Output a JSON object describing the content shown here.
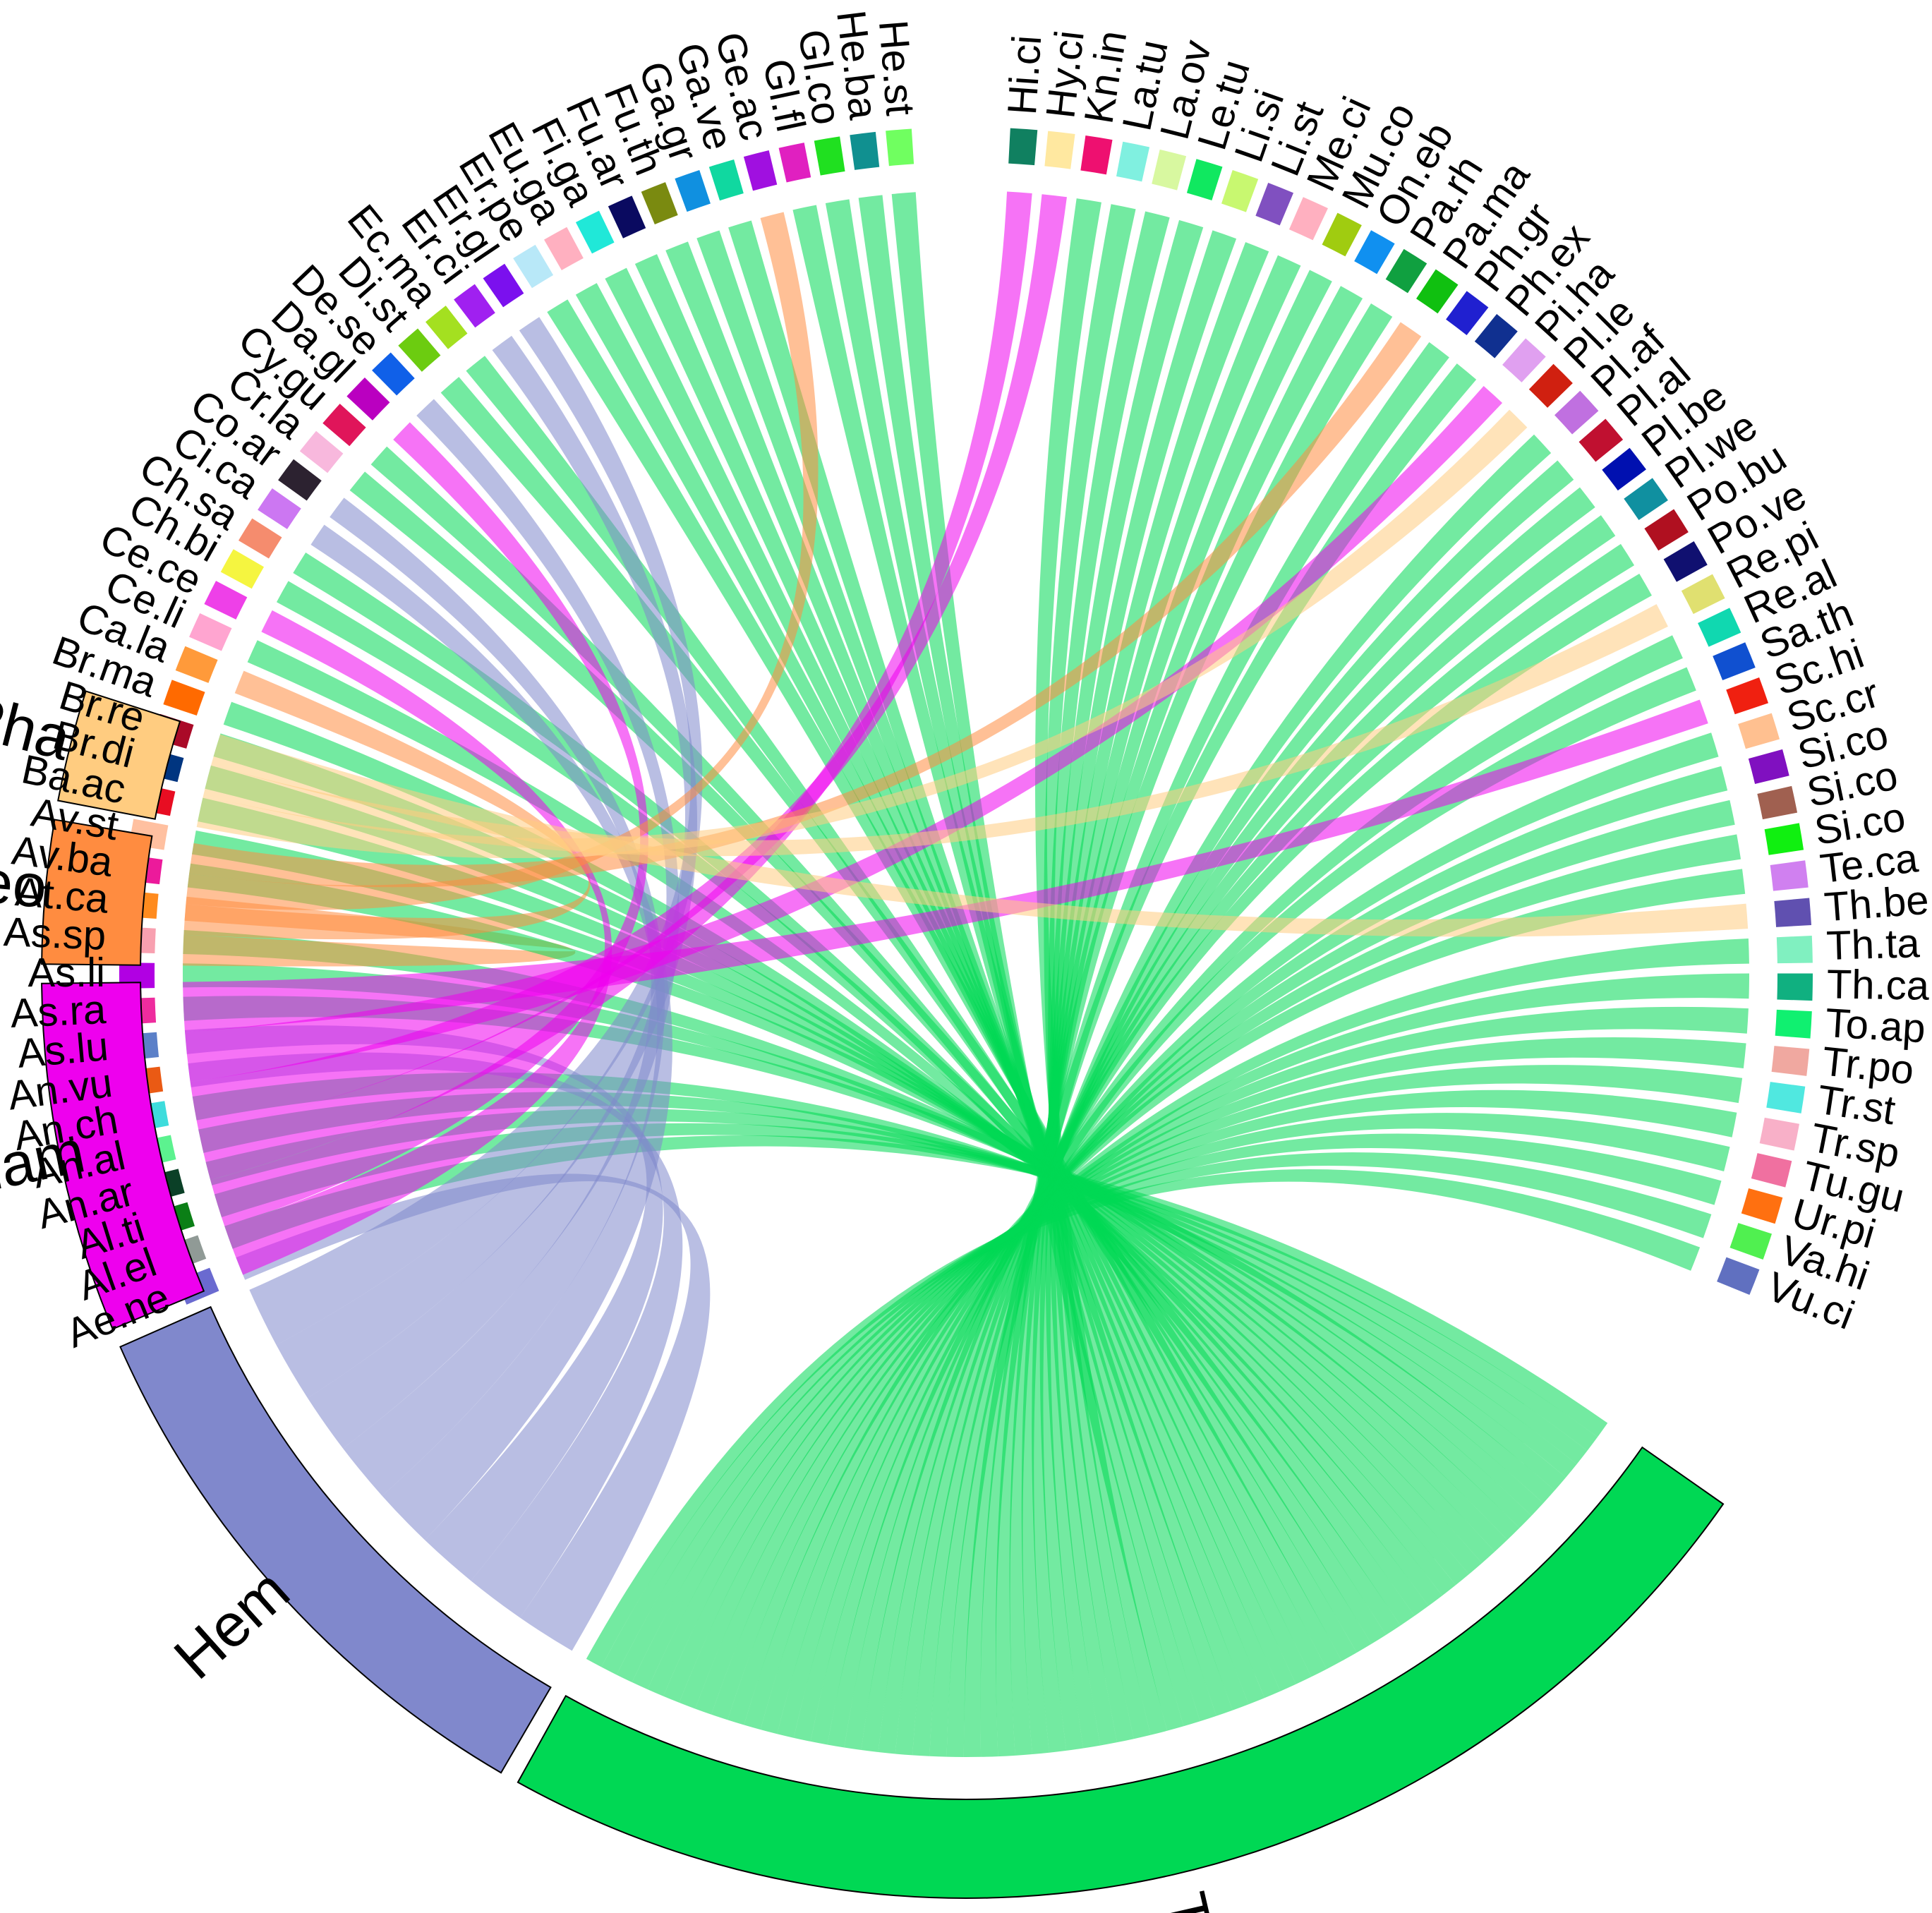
{
  "chart_data": {
    "type": "chord",
    "groups": [
      {
        "name": "Th",
        "color": "#00D854"
      },
      {
        "name": "Hem",
        "color": "#8088CC"
      },
      {
        "name": "Cham",
        "color": "#EE00EE"
      },
      {
        "name": "Geo",
        "color": "#FF8C40"
      },
      {
        "name": "Pha",
        "color": "#FFCC80"
      }
    ],
    "species": [
      {
        "name": "Ae.ne",
        "color": "#6A6AD0",
        "group": "Hem"
      },
      {
        "name": "Al.el",
        "color": "#909A96",
        "group": "Th"
      },
      {
        "name": "Al.ti",
        "color": "#0B7F16",
        "group": "Th"
      },
      {
        "name": "An.ar",
        "color": "#0B4027",
        "group": "Th"
      },
      {
        "name": "An.al",
        "color": "#5CF28F",
        "group": "Th"
      },
      {
        "name": "An.ch",
        "color": "#3DDCDC",
        "group": "Th"
      },
      {
        "name": "An.vu",
        "color": "#EA5A14",
        "group": "Hem"
      },
      {
        "name": "As.lu",
        "color": "#5B80C8",
        "group": "Hem"
      },
      {
        "name": "As.ra",
        "color": "#EE2C9E",
        "group": "Th"
      },
      {
        "name": "As.li",
        "color": "#B100E3",
        "group": "Th"
      },
      {
        "name": "As.sp",
        "color": "#F8A0B0",
        "group": "Th"
      },
      {
        "name": "At.ca",
        "color": "#FF8B1E",
        "group": "Geo"
      },
      {
        "name": "Av.ba",
        "color": "#EC1A9B",
        "group": "Th"
      },
      {
        "name": "Av.st",
        "color": "#FFC0A0",
        "group": "Th"
      },
      {
        "name": "Ba.ac",
        "color": "#E80D22",
        "group": "Th"
      },
      {
        "name": "Br.di",
        "color": "#003580",
        "group": "Th"
      },
      {
        "name": "Br.re",
        "color": "#AA0A28",
        "group": "Th"
      },
      {
        "name": "Br.ma",
        "color": "#FF6A00",
        "group": "Th"
      },
      {
        "name": "Ca.la",
        "color": "#FF9A3A",
        "group": "Geo"
      },
      {
        "name": "Ce.li",
        "color": "#FFA5D0",
        "group": "Th"
      },
      {
        "name": "Ce.ce",
        "color": "#EE40E8",
        "group": "Cham"
      },
      {
        "name": "Ch.bi",
        "color": "#F5F540",
        "group": "Th"
      },
      {
        "name": "Ch.sa",
        "color": "#F58C6E",
        "group": "Th"
      },
      {
        "name": "Ci.ca",
        "color": "#CC77F2",
        "group": "Hem"
      },
      {
        "name": "Co.ar",
        "color": "#2C2230",
        "group": "Hem"
      },
      {
        "name": "Cr.la",
        "color": "#F8B8DD",
        "group": "Th"
      },
      {
        "name": "Cy.gu",
        "color": "#E0155A",
        "group": "Th"
      },
      {
        "name": "Da.gl",
        "color": "#BA00C0",
        "group": "Cham"
      },
      {
        "name": "De.se",
        "color": "#1060E8",
        "group": "Hem"
      },
      {
        "name": "Di.st",
        "color": "#6CCC10",
        "group": "Th"
      },
      {
        "name": "Ec.ma",
        "color": "#A4E020",
        "group": "Th"
      },
      {
        "name": "Er.ci",
        "color": "#A020F0",
        "group": "Hem"
      },
      {
        "name": "Er.gl",
        "color": "#7B10EE",
        "group": "Hem"
      },
      {
        "name": "Er.pe",
        "color": "#B8E8F8",
        "group": "Th"
      },
      {
        "name": "Eu.ga",
        "color": "#FFB0C0",
        "group": "Th"
      },
      {
        "name": "Fi.ga",
        "color": "#20E8D8",
        "group": "Th"
      },
      {
        "name": "Fu.ar",
        "color": "#0A0A60",
        "group": "Th"
      },
      {
        "name": "Fu.th",
        "color": "#7A8A10",
        "group": "Th"
      },
      {
        "name": "Ga.gr",
        "color": "#1090E0",
        "group": "Th"
      },
      {
        "name": "Ga.ve",
        "color": "#10D8A0",
        "group": "Th"
      },
      {
        "name": "Ge.ac",
        "color": "#A010E0",
        "group": "Geo"
      },
      {
        "name": "Gl.fl",
        "color": "#E020C0",
        "group": "Th"
      },
      {
        "name": "Gl.co",
        "color": "#20E020",
        "group": "Th"
      },
      {
        "name": "He.ba",
        "color": "#109090",
        "group": "Th"
      },
      {
        "name": "He.st",
        "color": "#70FF60",
        "group": "Th"
      },
      {
        "name": "Hi.ci",
        "color": "#108060",
        "group": "Cham"
      },
      {
        "name": "Hy.ci",
        "color": "#FFE8A0",
        "group": "Cham"
      },
      {
        "name": "Kn.in",
        "color": "#EE1070",
        "group": "Th"
      },
      {
        "name": "La.tu",
        "color": "#80F0E0",
        "group": "Th"
      },
      {
        "name": "La.ov",
        "color": "#D8F8A0",
        "group": "Th"
      },
      {
        "name": "Le.tu",
        "color": "#10E860",
        "group": "Th"
      },
      {
        "name": "Li.si",
        "color": "#C8F870",
        "group": "Th"
      },
      {
        "name": "Li.st",
        "color": "#8050C0",
        "group": "Th"
      },
      {
        "name": "Me.ci",
        "color": "#FFB0C0",
        "group": "Th"
      },
      {
        "name": "Mu.co",
        "color": "#A0CC10",
        "group": "Th"
      },
      {
        "name": "On.eb",
        "color": "#1090F0",
        "group": "Th"
      },
      {
        "name": "Pa.rh",
        "color": "#10A040",
        "group": "Th"
      },
      {
        "name": "Pa.ma",
        "color": "#10C010",
        "group": "Geo"
      },
      {
        "name": "Ph.gr",
        "color": "#2020D0",
        "group": "Th"
      },
      {
        "name": "Ph.ex",
        "color": "#103090",
        "group": "Th"
      },
      {
        "name": "Pi.ha",
        "color": "#E0A0F0",
        "group": "Cham"
      },
      {
        "name": "Pl.le",
        "color": "#D02010",
        "group": "Pha"
      },
      {
        "name": "Pl.af",
        "color": "#C070E0",
        "group": "Th"
      },
      {
        "name": "Pl.al",
        "color": "#C01030",
        "group": "Th"
      },
      {
        "name": "Pl.be",
        "color": "#0010B0",
        "group": "Th"
      },
      {
        "name": "Pl.we",
        "color": "#1090A0",
        "group": "Th"
      },
      {
        "name": "Po.bu",
        "color": "#B01020",
        "group": "Th"
      },
      {
        "name": "Po.ve",
        "color": "#101070",
        "group": "Th"
      },
      {
        "name": "Re.pi",
        "color": "#E0E070",
        "group": "Pha"
      },
      {
        "name": "Re.al",
        "color": "#10D8B0",
        "group": "Th"
      },
      {
        "name": "Sa.th",
        "color": "#1050D0",
        "group": "Th"
      },
      {
        "name": "Sc.hi",
        "color": "#F02010",
        "group": "Cham"
      },
      {
        "name": "Sc.cr",
        "color": "#FFC090",
        "group": "Th"
      },
      {
        "name": "Si.co",
        "color": "#8010C0",
        "group": "Th"
      },
      {
        "name": "Si.co",
        "color": "#A06050",
        "group": "Th"
      },
      {
        "name": "Si.co",
        "color": "#10F010",
        "group": "Th"
      },
      {
        "name": "Te.ca",
        "color": "#D080F0",
        "group": "Th"
      },
      {
        "name": "Th.be",
        "color": "#6050B0",
        "group": "Pha"
      },
      {
        "name": "Th.ta",
        "color": "#80F0C0",
        "group": "Th"
      },
      {
        "name": "Th.ca",
        "color": "#10B080",
        "group": "Th"
      },
      {
        "name": "To.ap",
        "color": "#10F070",
        "group": "Th"
      },
      {
        "name": "Tr.po",
        "color": "#F0A8A0",
        "group": "Th"
      },
      {
        "name": "Tr.st",
        "color": "#50E8E0",
        "group": "Th"
      },
      {
        "name": "Tr.sp",
        "color": "#F8B0C8",
        "group": "Th"
      },
      {
        "name": "Tu.gu",
        "color": "#F070A0",
        "group": "Th"
      },
      {
        "name": "Ur.pi",
        "color": "#FF7010",
        "group": "Th"
      },
      {
        "name": "Va.hi",
        "color": "#50F050",
        "group": "Th"
      },
      {
        "name": "Vu.ci",
        "color": "#6070C0",
        "group": "Th"
      }
    ],
    "tail_colors": [
      "#E01010",
      "#10D8D0"
    ],
    "link_opacity": 0.55,
    "legend": "none",
    "grid": false
  }
}
